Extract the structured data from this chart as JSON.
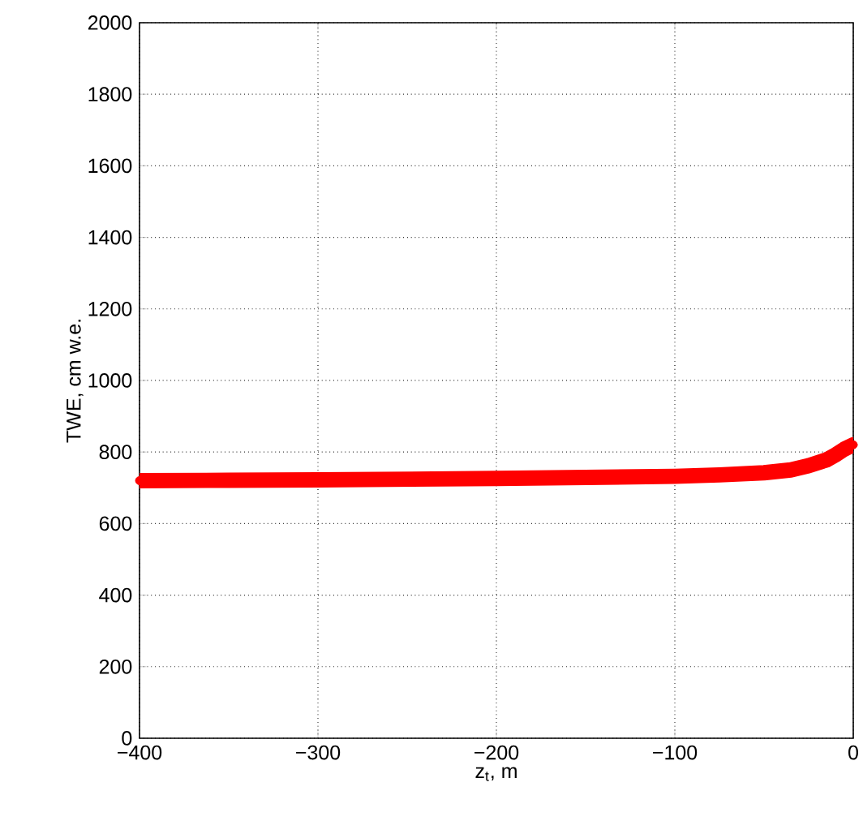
{
  "chart_data": {
    "type": "line",
    "xlabel": "z$_{t}$, m",
    "ylabel": "TWE, cm w.e.",
    "series": [
      {
        "color": "#ff0000",
        "x": [
          -400,
          -350,
          -300,
          -250,
          -200,
          -150,
          -100,
          -75,
          -50,
          -35,
          -25,
          -15,
          -10,
          -5,
          0
        ],
        "values": [
          720,
          721,
          722,
          724,
          726,
          729,
          732,
          736,
          742,
          750,
          762,
          778,
          792,
          808,
          820
        ]
      }
    ],
    "xlim": [
      -400,
      0
    ],
    "ylim": [
      0,
      2000
    ],
    "xticks": [
      {
        "value": -400,
        "label": "−400"
      },
      {
        "value": -300,
        "label": "−300"
      },
      {
        "value": -200,
        "label": "−200"
      },
      {
        "value": -100,
        "label": "−100"
      },
      0
    ],
    "yticks": [
      0,
      200,
      400,
      600,
      800,
      1000,
      1200,
      1400,
      1600,
      1800,
      2000
    ],
    "grid": true,
    "marker": "circle",
    "line_style": "solid"
  }
}
